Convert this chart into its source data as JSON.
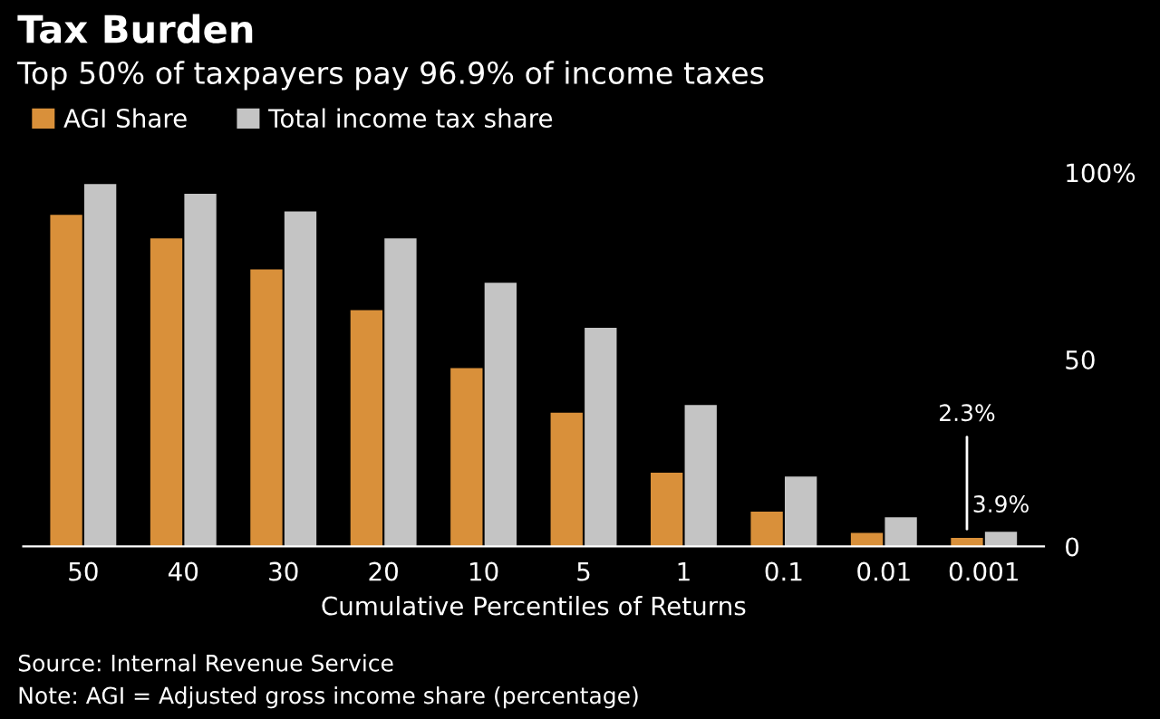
{
  "chart_data": {
    "type": "bar",
    "title": "Tax Burden",
    "subtitle": "Top 50% of taxpayers pay 96.9% of income taxes",
    "xlabel": "Cumulative Percentiles of Returns",
    "categories": [
      "50",
      "40",
      "30",
      "20",
      "10",
      "5",
      "1",
      "0.1",
      "0.01",
      "0.001"
    ],
    "series": [
      {
        "name": "AGI Share",
        "color": "#d9903a",
        "values": [
          88.7,
          82.4,
          74.1,
          63.2,
          47.7,
          35.8,
          19.7,
          9.3,
          3.6,
          2.3
        ],
        "value_labels": [
          null,
          null,
          null,
          null,
          null,
          null,
          null,
          null,
          null,
          "2.3%"
        ]
      },
      {
        "name": "Total income tax share",
        "color": "#c4c4c4",
        "values": [
          96.9,
          94.3,
          89.6,
          82.4,
          70.5,
          58.5,
          37.8,
          18.7,
          7.8,
          3.9
        ],
        "value_labels": [
          null,
          null,
          null,
          null,
          null,
          null,
          null,
          null,
          null,
          "3.9%"
        ]
      }
    ],
    "ylim": [
      0,
      100
    ],
    "yticks": [
      {
        "value": 0,
        "label": "0"
      },
      {
        "value": 50,
        "label": "50"
      },
      {
        "value": 100,
        "label": "100%"
      }
    ],
    "grid": false,
    "legend": "top left",
    "annotations": [
      "Source: Internal Revenue Service",
      "Note: AGI = Adjusted gross income share (percentage)"
    ]
  }
}
